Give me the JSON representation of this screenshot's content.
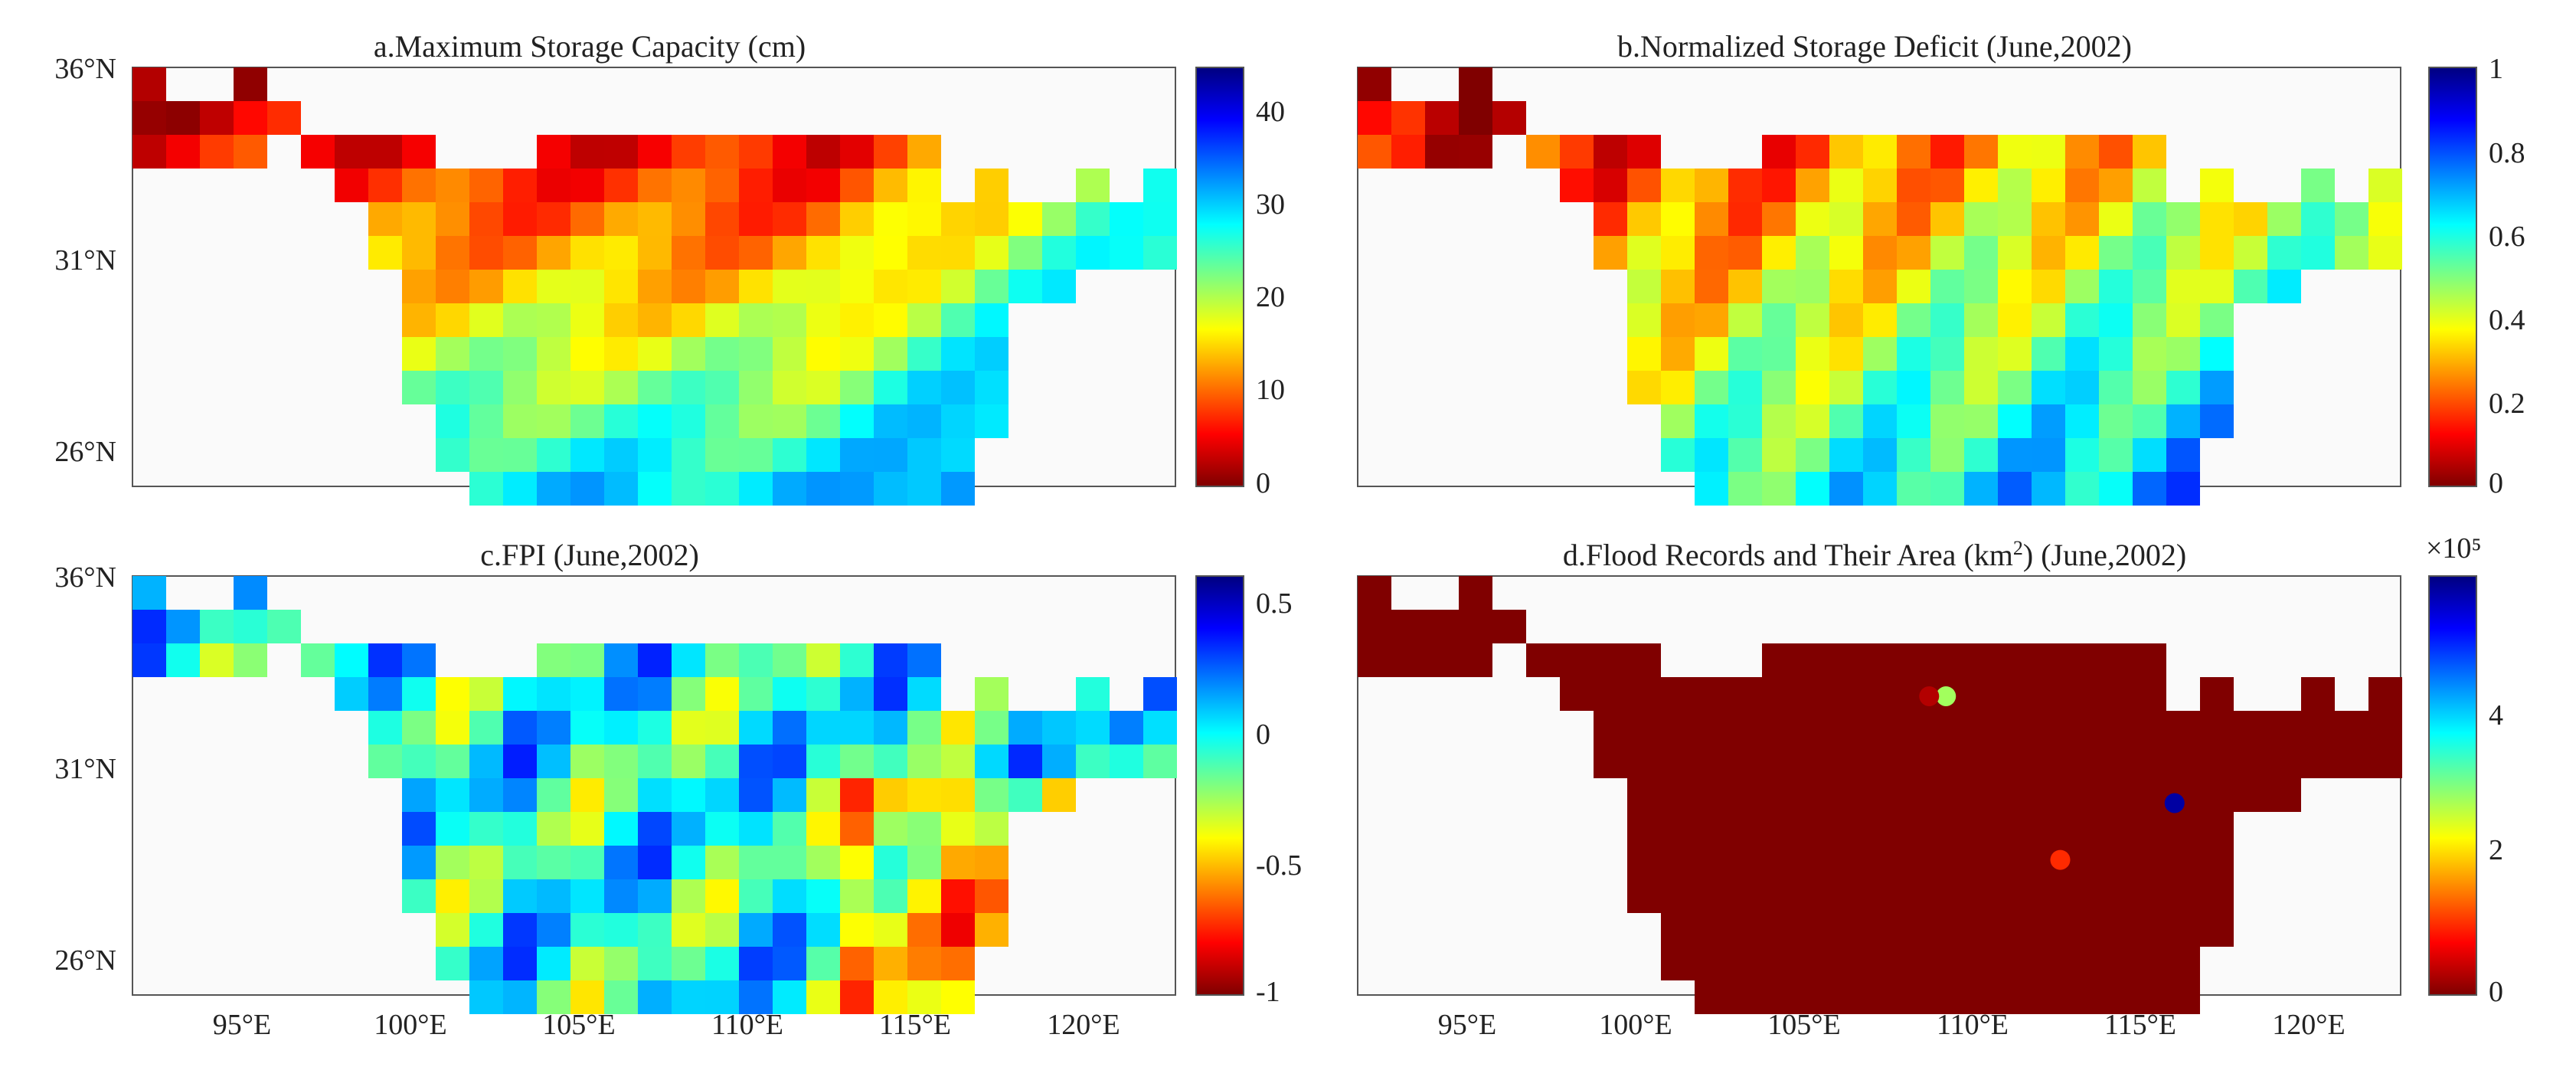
{
  "figure": {
    "panels": [
      {
        "title": "a.Maximum Storage Capacity (cm)",
        "lat_labels": [
          "36°N",
          "31°N",
          "26°N"
        ],
        "lon_labels": [],
        "colorbar_labels": [
          "40",
          "30",
          "20",
          "10",
          "0"
        ],
        "colorbar_exponent": ""
      },
      {
        "title": "b.Normalized Storage Deficit (June,2002)",
        "lat_labels": [],
        "lon_labels": [],
        "colorbar_labels": [
          "1",
          "0.8",
          "0.6",
          "0.4",
          "0.2",
          "0"
        ],
        "colorbar_exponent": ""
      },
      {
        "title": "c.FPI (June,2002)",
        "lat_labels": [
          "36°N",
          "31°N",
          "26°N"
        ],
        "lon_labels": [
          "95°E",
          "100°E",
          "105°E",
          "110°E",
          "115°E",
          "120°E"
        ],
        "colorbar_labels": [
          "0.5",
          "0",
          "-0.5",
          "-1"
        ],
        "colorbar_exponent": ""
      },
      {
        "title": "d.Flood Records and Their Area (km",
        "title_sup": "2",
        "title_tail": ") (June,2002)",
        "lat_labels": [],
        "lon_labels": [
          "95°E",
          "100°E",
          "105°E",
          "110°E",
          "115°E",
          "120°E"
        ],
        "colorbar_labels": [
          "4",
          "2",
          "0"
        ],
        "colorbar_exponent": "×10⁵"
      }
    ]
  },
  "chart_data": [
    {
      "type": "heatmap",
      "title": "a.Maximum Storage Capacity (cm)",
      "colormap": "jet_reversed",
      "clim": [
        0,
        45
      ],
      "colorbar_ticks": [
        0,
        10,
        20,
        30,
        40
      ],
      "lon_range_deg_E": [
        92,
        123
      ],
      "lat_range_deg_N": [
        25,
        36.5
      ]
    },
    {
      "type": "heatmap",
      "title": "b.Normalized Storage Deficit (June,2002)",
      "colormap": "jet_reversed",
      "clim": [
        0,
        1
      ],
      "colorbar_ticks": [
        0,
        0.2,
        0.4,
        0.6,
        0.8,
        1
      ],
      "lon_range_deg_E": [
        92,
        123
      ],
      "lat_range_deg_N": [
        25,
        36.5
      ]
    },
    {
      "type": "heatmap",
      "title": "c.FPI (June,2002)",
      "colormap": "jet_reversed",
      "clim": [
        -1,
        0.6
      ],
      "colorbar_ticks": [
        -1,
        -0.5,
        0,
        0.5
      ],
      "lon_range_deg_E": [
        92,
        123
      ],
      "lat_range_deg_N": [
        25,
        36.5
      ]
    },
    {
      "type": "scatter",
      "title": "d.Flood Records and Their Area (km2) (June,2002)",
      "colormap": "jet_reversed",
      "clim": [
        0,
        6
      ],
      "colorbar_ticks": [
        0,
        2,
        4
      ],
      "colorbar_exponent": "×10⁵",
      "lon_range_deg_E": [
        92,
        123
      ],
      "lat_range_deg_N": [
        25,
        36.5
      ],
      "points": [
        {
          "lon": 109.5,
          "lat": 32.9,
          "value": 2.8
        },
        {
          "lon": 109.0,
          "lat": 32.9,
          "value": 0.3
        },
        {
          "lon": 116.3,
          "lat": 29.7,
          "value": 5.8
        },
        {
          "lon": 112.9,
          "lat": 28.0,
          "value": 1.0
        }
      ]
    }
  ],
  "colors": {
    "background": "#fafafa",
    "frame": "#555555",
    "mask": "#7f0000"
  }
}
